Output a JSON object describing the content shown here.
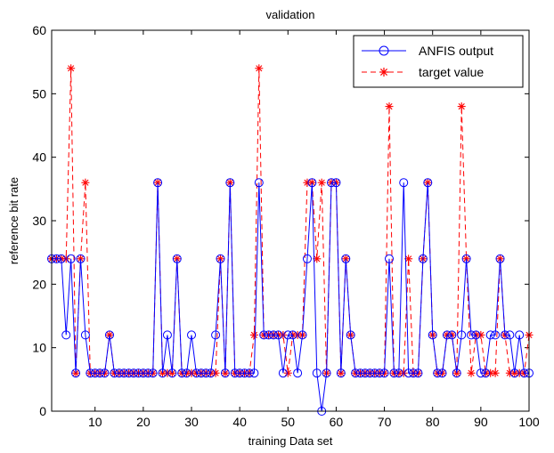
{
  "chart_data": {
    "type": "line",
    "title": "validation",
    "xlabel": "training Data set",
    "ylabel": "reference bit rate",
    "xlim": [
      1,
      100
    ],
    "ylim": [
      0,
      60
    ],
    "xticks": [
      10,
      20,
      30,
      40,
      50,
      60,
      70,
      80,
      90,
      100
    ],
    "yticks": [
      0,
      10,
      20,
      30,
      40,
      50,
      60
    ],
    "legend_position": "top-right",
    "grid": false,
    "x": [
      1,
      2,
      3,
      4,
      5,
      6,
      7,
      8,
      9,
      10,
      11,
      12,
      13,
      14,
      15,
      16,
      17,
      18,
      19,
      20,
      21,
      22,
      23,
      24,
      25,
      26,
      27,
      28,
      29,
      30,
      31,
      32,
      33,
      34,
      35,
      36,
      37,
      38,
      39,
      40,
      41,
      42,
      43,
      44,
      45,
      46,
      47,
      48,
      49,
      50,
      51,
      52,
      53,
      54,
      55,
      56,
      57,
      58,
      59,
      60,
      61,
      62,
      63,
      64,
      65,
      66,
      67,
      68,
      69,
      70,
      71,
      72,
      73,
      74,
      75,
      76,
      77,
      78,
      79,
      80,
      81,
      82,
      83,
      84,
      85,
      86,
      87,
      88,
      89,
      90,
      91,
      92,
      93,
      94,
      95,
      96,
      97,
      98,
      99,
      100
    ],
    "series": [
      {
        "name": "ANFIS output",
        "color": "#0000ff",
        "line_style": "solid",
        "marker": "circle",
        "values": [
          24,
          24,
          24,
          12,
          24,
          6,
          24,
          12,
          6,
          6,
          6,
          6,
          12,
          6,
          6,
          6,
          6,
          6,
          6,
          6,
          6,
          6,
          36,
          6,
          12,
          6,
          24,
          6,
          6,
          12,
          6,
          6,
          6,
          6,
          12,
          24,
          6,
          36,
          6,
          6,
          6,
          6,
          6,
          36,
          12,
          12,
          12,
          12,
          6,
          12,
          12,
          6,
          12,
          24,
          36,
          6,
          0,
          6,
          36,
          36,
          6,
          24,
          12,
          6,
          6,
          6,
          6,
          6,
          6,
          6,
          24,
          6,
          6,
          36,
          6,
          6,
          6,
          24,
          36,
          12,
          6,
          6,
          12,
          12,
          6,
          12,
          24,
          12,
          12,
          6,
          6,
          12,
          12,
          24,
          12,
          12,
          6,
          12,
          6,
          6
        ]
      },
      {
        "name": "target value",
        "color": "#ff0000",
        "line_style": "dashed",
        "marker": "asterisk",
        "values": [
          24,
          24,
          24,
          24,
          54,
          6,
          24,
          36,
          6,
          6,
          6,
          6,
          12,
          6,
          6,
          6,
          6,
          6,
          6,
          6,
          6,
          6,
          36,
          6,
          6,
          6,
          24,
          6,
          6,
          6,
          6,
          6,
          6,
          6,
          6,
          24,
          6,
          36,
          6,
          6,
          6,
          6,
          12,
          54,
          12,
          12,
          12,
          12,
          12,
          6,
          12,
          12,
          12,
          36,
          36,
          24,
          36,
          6,
          36,
          36,
          6,
          24,
          12,
          6,
          6,
          6,
          6,
          6,
          6,
          6,
          48,
          6,
          6,
          6,
          24,
          6,
          6,
          24,
          36,
          12,
          6,
          6,
          12,
          12,
          6,
          48,
          24,
          6,
          12,
          12,
          6,
          6,
          6,
          24,
          12,
          6,
          6,
          6,
          6,
          12
        ]
      }
    ]
  }
}
